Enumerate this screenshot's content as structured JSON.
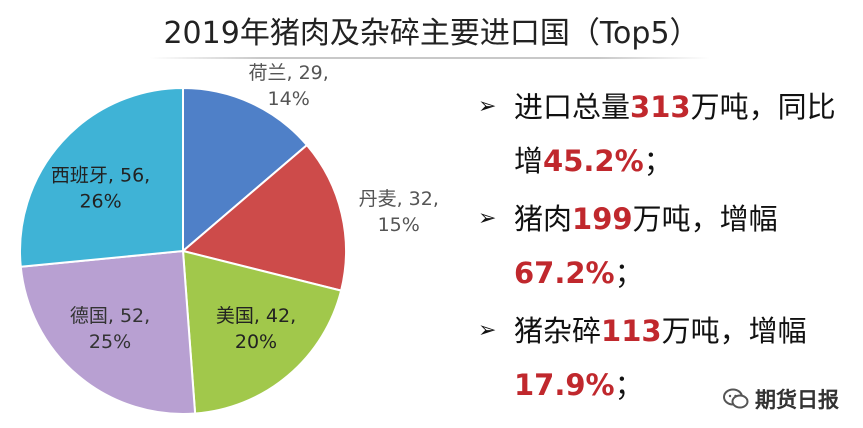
{
  "chart_data": {
    "type": "pie",
    "title": "2019年猪肉及杂碎主要进口国（Top5）",
    "slices": [
      {
        "name": "荷兰",
        "value": 29,
        "percent": "14%",
        "color": "#4f80c8"
      },
      {
        "name": "丹麦",
        "value": 32,
        "percent": "15%",
        "color": "#cd4b4a"
      },
      {
        "name": "美国",
        "value": 42,
        "percent": "20%",
        "color": "#a1c84b"
      },
      {
        "name": "德国",
        "value": 52,
        "percent": "25%",
        "color": "#b8a0d2"
      },
      {
        "name": "西班牙",
        "value": 56,
        "percent": "26%",
        "color": "#3fb3d6"
      }
    ]
  },
  "bullets": [
    {
      "pre": "进口总量",
      "num": "313",
      "post": "万吨，同比增",
      "num2": "45.2%",
      "post2": "；"
    },
    {
      "pre": "猪肉",
      "num": "199",
      "post": "万吨，增幅",
      "num2": "67.2%",
      "post2": "；"
    },
    {
      "pre": "猪杂碎",
      "num": "113",
      "post": "万吨，增幅",
      "num2": "17.9%",
      "post2": "；"
    }
  ],
  "watermark": {
    "text": "期货日报",
    "icon": "wechat-icon"
  }
}
